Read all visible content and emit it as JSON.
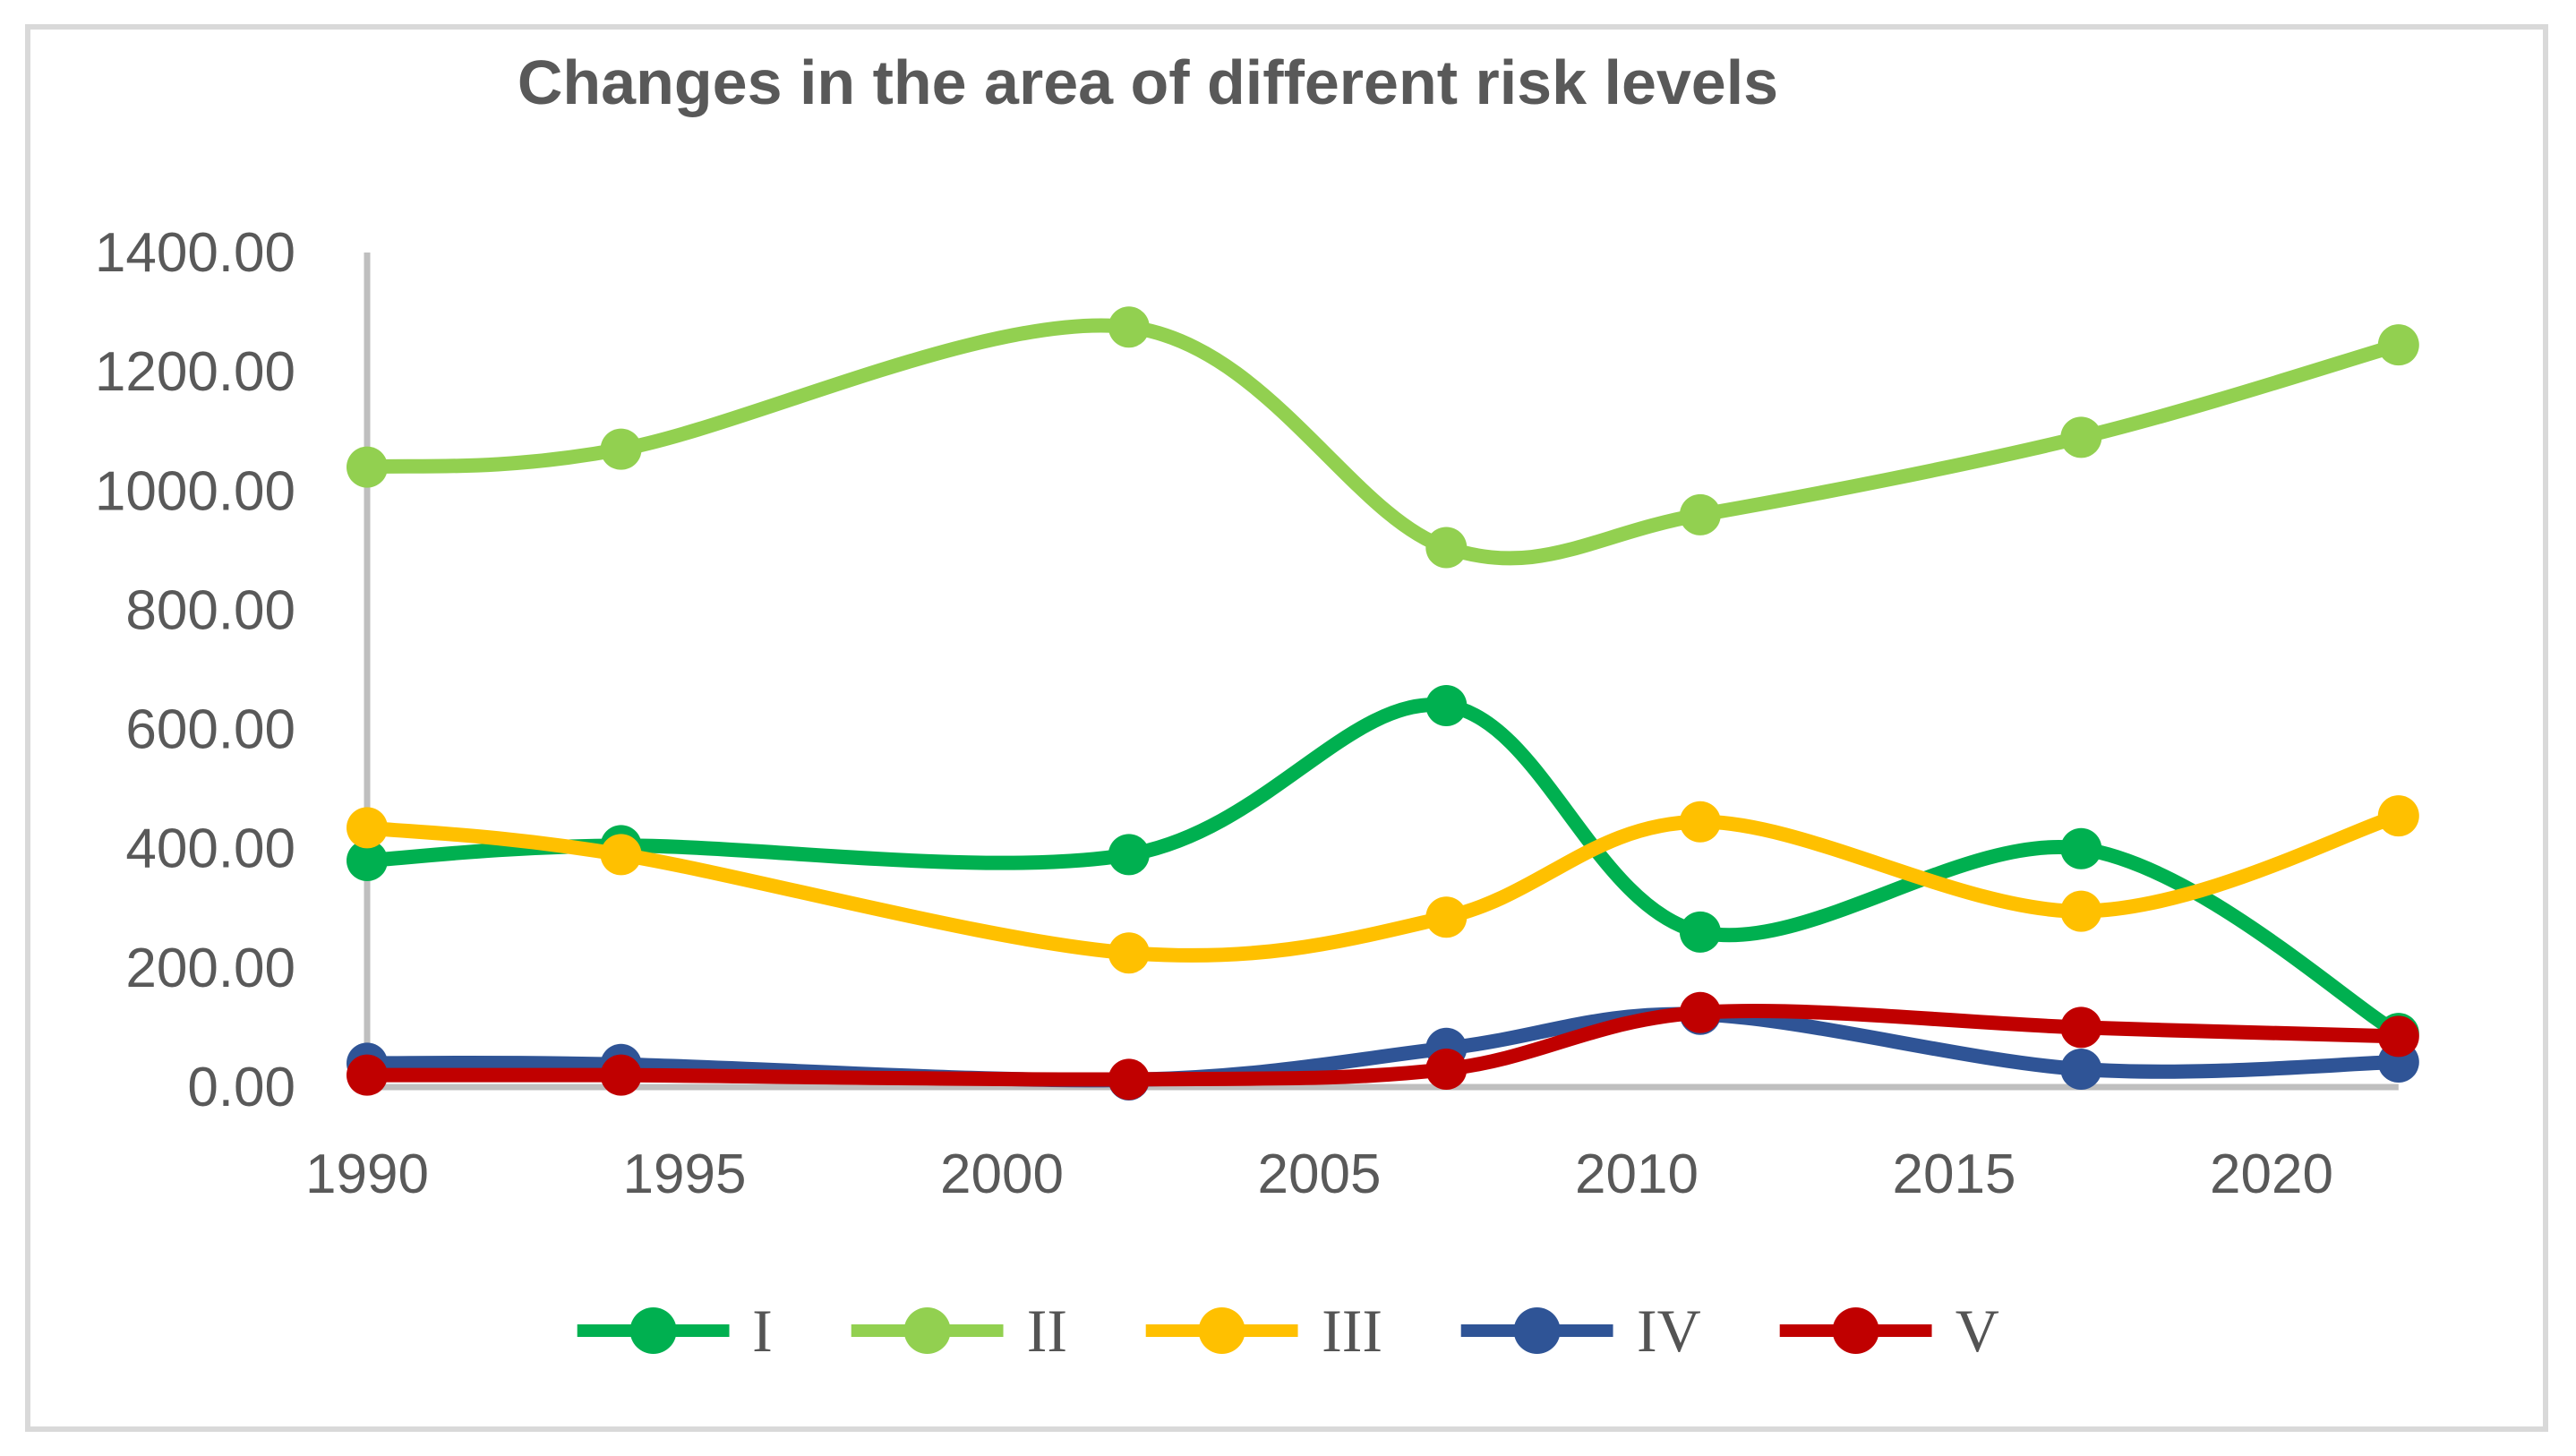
{
  "chart_data": {
    "type": "line",
    "title": "Changes in the area of different risk levels",
    "smooth": true,
    "grid": false,
    "legend_position": "bottom",
    "x": [
      1990,
      1994,
      2002,
      2007,
      2011,
      2017,
      2022
    ],
    "series": [
      {
        "name": "I",
        "color": "#00B050",
        "values": [
          380,
          405,
          390,
          640,
          260,
          400,
          90
        ]
      },
      {
        "name": "II",
        "color": "#92D050",
        "values": [
          1040,
          1070,
          1275,
          905,
          960,
          1090,
          1245
        ]
      },
      {
        "name": "III",
        "color": "#FFC000",
        "values": [
          435,
          390,
          225,
          285,
          445,
          295,
          455
        ]
      },
      {
        "name": "IV",
        "color": "#2F5496",
        "values": [
          40,
          38,
          12,
          65,
          122,
          30,
          42
        ]
      },
      {
        "name": "V",
        "color": "#C00000",
        "values": [
          20,
          20,
          13,
          30,
          125,
          100,
          85
        ]
      }
    ],
    "ylim": [
      0,
      1400
    ],
    "y_tick_step": 200,
    "y_ticks": [
      "0.00",
      "200.00",
      "400.00",
      "600.00",
      "800.00",
      "1000.00",
      "1200.00",
      "1400.00"
    ],
    "x_ticks": [
      "1990",
      "1995",
      "2000",
      "2005",
      "2010",
      "2015",
      "2020"
    ]
  },
  "colors": {
    "text": "#595959",
    "axis_line": "#BFBFBF",
    "frame_border": "#D9D9D9",
    "background": "#FFFFFF"
  }
}
